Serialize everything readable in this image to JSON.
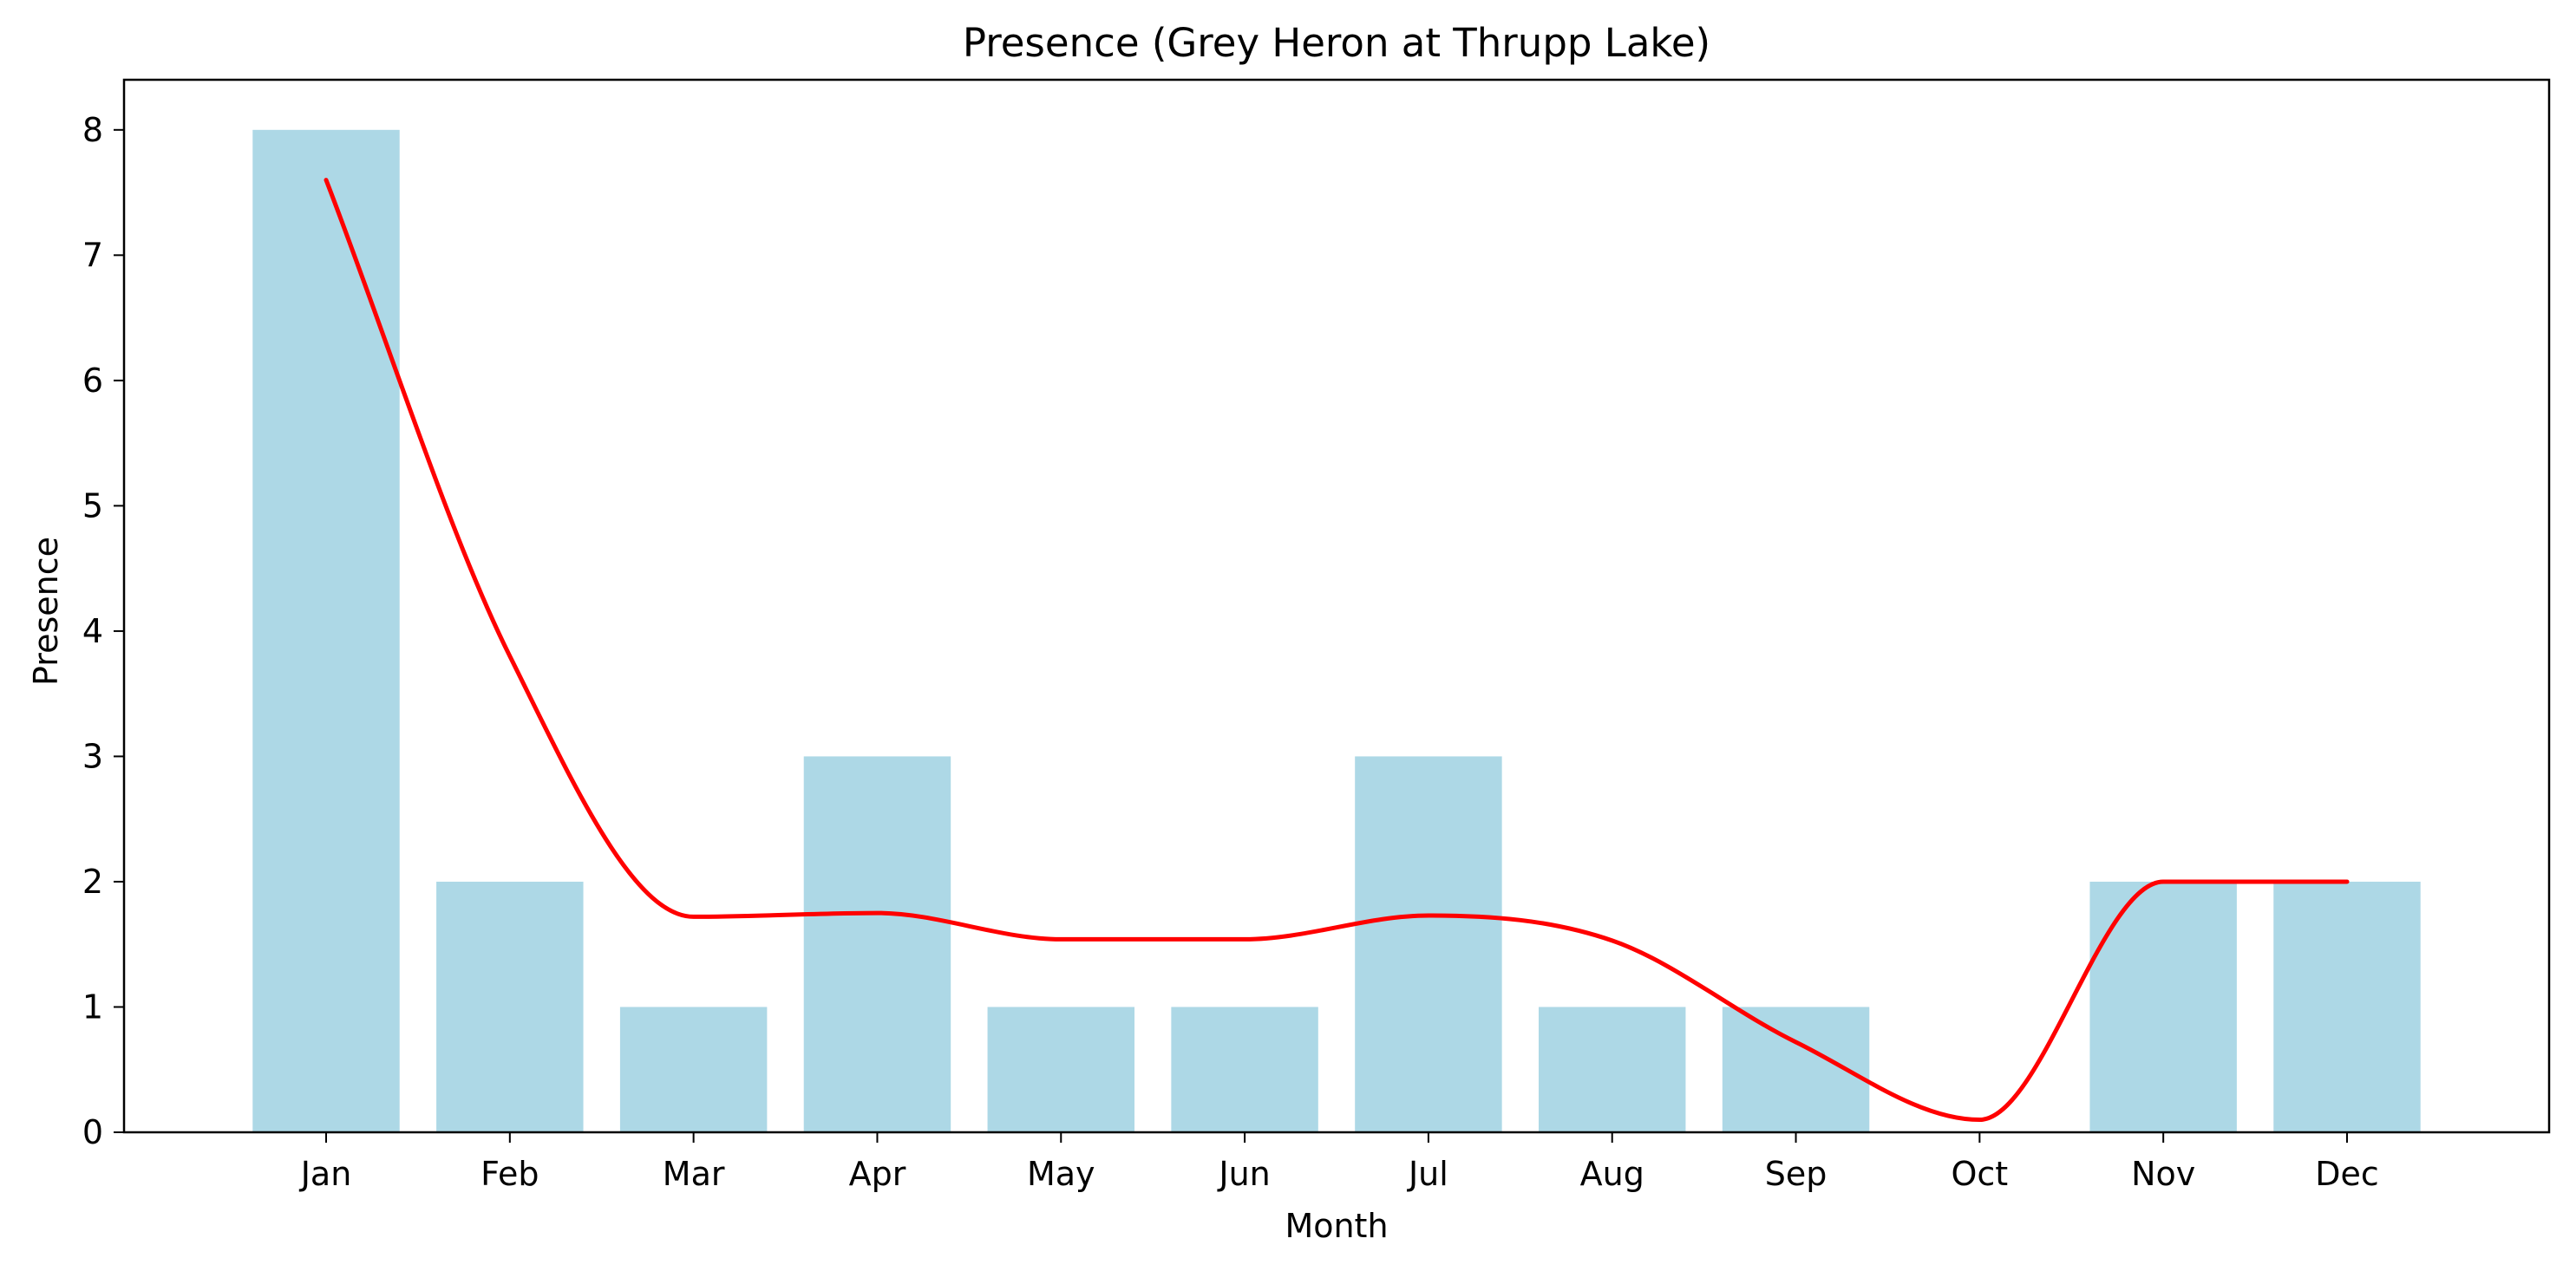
{
  "chart_data": {
    "type": "bar",
    "title": "Presence (Grey Heron at Thrupp Lake)",
    "xlabel": "Month",
    "ylabel": "Presence",
    "categories": [
      "Jan",
      "Feb",
      "Mar",
      "Apr",
      "May",
      "Jun",
      "Jul",
      "Aug",
      "Sep",
      "Oct",
      "Nov",
      "Dec"
    ],
    "values": [
      8,
      2,
      1,
      3,
      1,
      1,
      3,
      1,
      1,
      0,
      2,
      2
    ],
    "ylim": [
      0,
      8.4
    ],
    "yticks": [
      "0",
      "1",
      "2",
      "3",
      "4",
      "5",
      "6",
      "7",
      "8"
    ],
    "grid": false,
    "bar_color": "#add8e6",
    "trend_line": {
      "color": "#ff0000",
      "values": [
        7.6,
        3.8,
        1.72,
        1.75,
        1.54,
        1.54,
        1.73,
        1.53,
        0.72,
        0.1,
        2.0,
        2.0
      ]
    }
  }
}
